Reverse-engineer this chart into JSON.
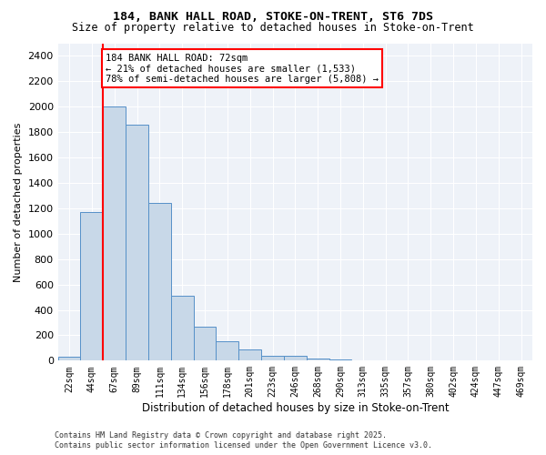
{
  "title_line1": "184, BANK HALL ROAD, STOKE-ON-TRENT, ST6 7DS",
  "title_line2": "Size of property relative to detached houses in Stoke-on-Trent",
  "xlabel": "Distribution of detached houses by size in Stoke-on-Trent",
  "ylabel": "Number of detached properties",
  "bar_labels": [
    "22sqm",
    "44sqm",
    "67sqm",
    "89sqm",
    "111sqm",
    "134sqm",
    "156sqm",
    "178sqm",
    "201sqm",
    "223sqm",
    "246sqm",
    "268sqm",
    "290sqm",
    "313sqm",
    "335sqm",
    "357sqm",
    "380sqm",
    "402sqm",
    "424sqm",
    "447sqm",
    "469sqm"
  ],
  "bar_values": [
    30,
    1170,
    2000,
    1860,
    1240,
    510,
    270,
    150,
    90,
    40,
    40,
    20,
    10,
    5,
    5,
    3,
    3,
    2,
    1,
    1,
    1
  ],
  "bar_color": "#c8d8e8",
  "bar_edge_color": "#5590c8",
  "vline_color": "red",
  "annotation_text": "184 BANK HALL ROAD: 72sqm\n← 21% of detached houses are smaller (1,533)\n78% of semi-detached houses are larger (5,808) →",
  "ylim": [
    0,
    2500
  ],
  "yticks": [
    0,
    200,
    400,
    600,
    800,
    1000,
    1200,
    1400,
    1600,
    1800,
    2000,
    2200,
    2400
  ],
  "background_color": "#eef2f8",
  "grid_color": "white",
  "footer_line1": "Contains HM Land Registry data © Crown copyright and database right 2025.",
  "footer_line2": "Contains public sector information licensed under the Open Government Licence v3.0."
}
